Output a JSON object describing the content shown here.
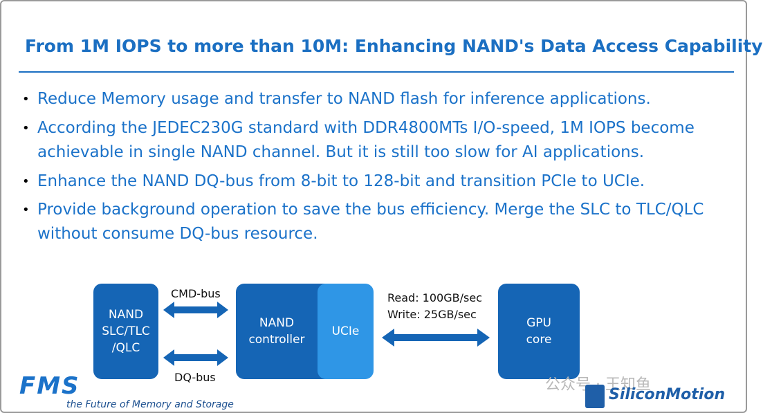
{
  "header": {
    "title": "From 1M IOPS to more than 10M: Enhancing NAND's Data Access Capability"
  },
  "bullets": [
    {
      "lines": [
        "Reduce Memory usage and transfer to NAND flash for inference applications."
      ]
    },
    {
      "lines": [
        "According the JEDEC230G standard with DDR4800MTs I/O-speed, 1M IOPS become",
        "achievable in single NAND channel.  But it is still too slow for AI applications."
      ]
    },
    {
      "lines": [
        "Enhance the NAND DQ-bus from 8-bit to 128-bit and transition PCIe to UCIe."
      ]
    },
    {
      "lines": [
        "Provide background operation to save the bus efficiency. Merge the SLC to TLC/QLC",
        "without consume DQ-bus resource."
      ]
    }
  ],
  "diagram": {
    "nodes": [
      {
        "lines": [
          "NAND",
          "SLC/TLC",
          "/QLC"
        ]
      },
      {
        "lines": [
          "NAND",
          "controller"
        ]
      },
      {
        "lines": [
          "UCIe"
        ]
      },
      {
        "lines": [
          "GPU",
          "core"
        ]
      }
    ],
    "links": [
      {
        "lines": [
          "CMD-bus"
        ]
      },
      {
        "lines": [
          "DQ-bus"
        ]
      },
      {
        "lines": [
          "Read: 100GB/sec",
          "Write: 25GB/sec"
        ]
      }
    ]
  },
  "footer": {
    "fms_logo": "FMS",
    "fms_tagline": "the Future of Memory and Storage",
    "watermark": "公众号 · 王知鱼",
    "company_logo": "SiliconMotion"
  }
}
